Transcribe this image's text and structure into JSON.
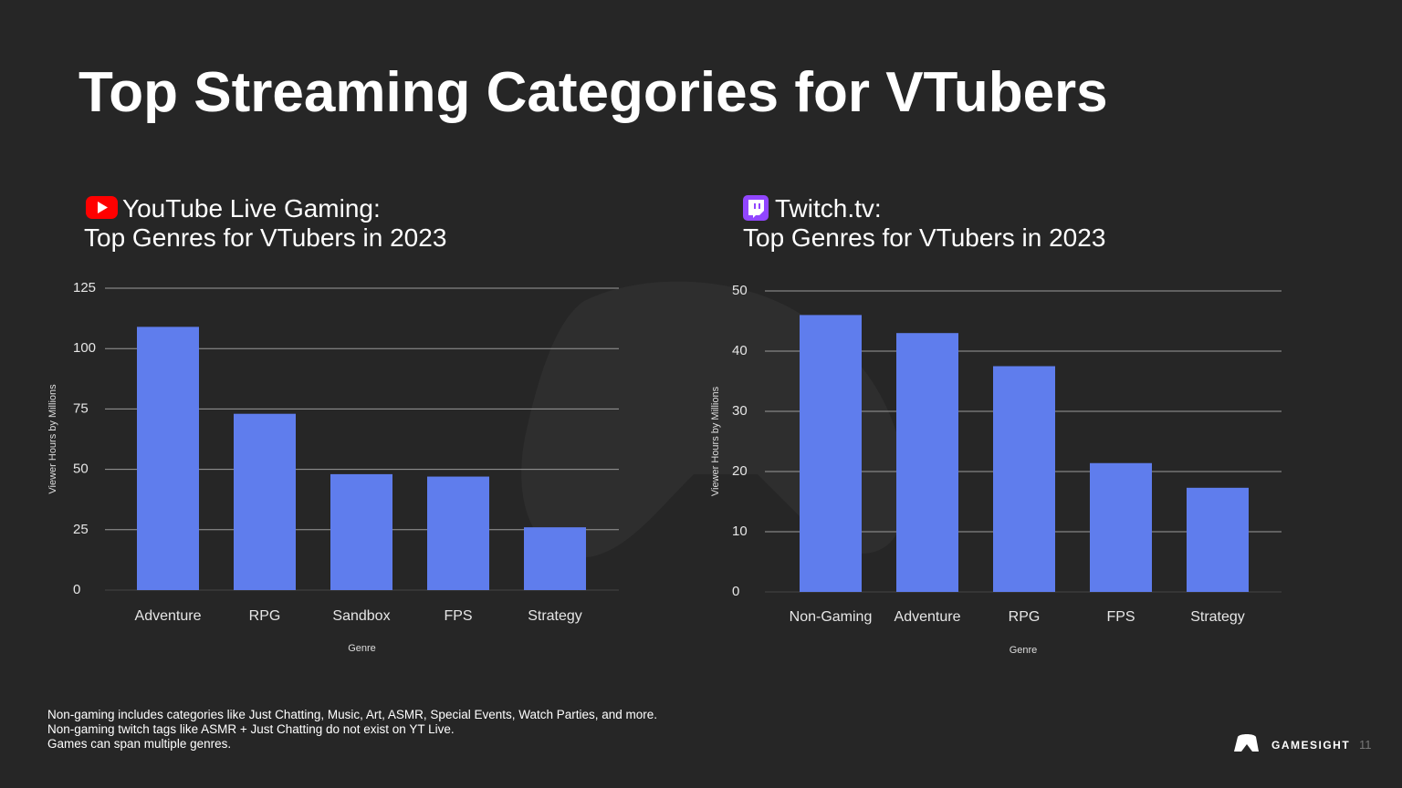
{
  "title": "Top Streaming Categories for VTubers",
  "footnotes": [
    "Non-gaming includes categories like Just Chatting, Music, Art, ASMR, Special Events, Watch Parties, and more.",
    "Non-gaming twitch tags like ASMR + Just Chatting do not exist on YT Live.",
    "Games can span multiple genres."
  ],
  "brand": "GAMESIGHT",
  "page_number": "11",
  "chart_data": [
    {
      "type": "bar",
      "title": "YouTube Live Gaming:",
      "subtitle": "Top Genres for VTubers in 2023",
      "x_label": "Genre",
      "y_label": "Viewer Hours by Millions",
      "categories": [
        "Adventure",
        "RPG",
        "Sandbox",
        "FPS",
        "Strategy"
      ],
      "values": [
        109,
        73,
        48,
        47,
        26
      ],
      "color": "#5f7ded",
      "ylim": [
        0,
        125
      ],
      "yticks": [
        0,
        25,
        50,
        75,
        100,
        125
      ],
      "grid": true
    },
    {
      "type": "bar",
      "title": "Twitch.tv:",
      "subtitle": "Top Genres for VTubers in 2023",
      "x_label": "Genre",
      "y_label": "Viewer Hours by Millions",
      "categories": [
        "Non-Gaming",
        "Adventure",
        "RPG",
        "FPS",
        "Strategy"
      ],
      "values": [
        46,
        43,
        37.5,
        21.4,
        17.3
      ],
      "color": "#5f7ded",
      "ylim": [
        0,
        50
      ],
      "yticks": [
        0,
        10,
        20,
        30,
        40,
        50
      ],
      "grid": true
    }
  ]
}
